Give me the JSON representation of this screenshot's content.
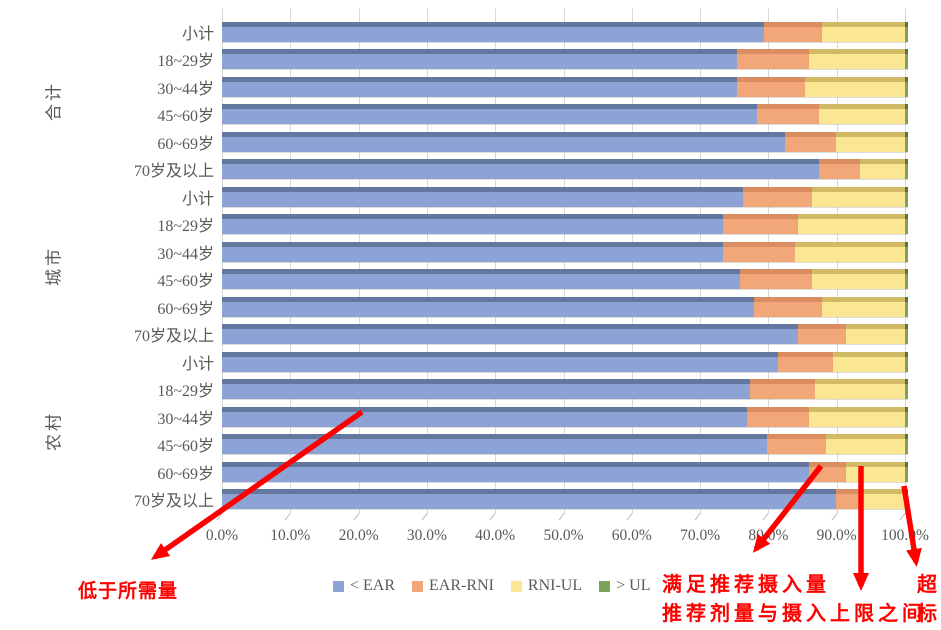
{
  "chart_data": {
    "type": "bar",
    "orientation": "horizontal-stacked",
    "xlim": [
      0,
      100
    ],
    "grid": true,
    "legend_position": "bottom",
    "x_tick_labels": [
      "0.0%",
      "10.0%",
      "20.0%",
      "30.0%",
      "40.0%",
      "50.0%",
      "60.0%",
      "70.0%",
      "80.0%",
      "90.0%",
      "100.0%"
    ],
    "groups": [
      {
        "label": "合计",
        "rows": [
          "小计",
          "18~29岁",
          "30~44岁",
          "45~60岁",
          "60~69岁",
          "70岁及以上"
        ]
      },
      {
        "label": "城市",
        "rows": [
          "小计",
          "18~29岁",
          "30~44岁",
          "45~60岁",
          "60~69岁",
          "70岁及以上"
        ]
      },
      {
        "label": "农村",
        "rows": [
          "小计",
          "18~29岁",
          "30~44岁",
          "45~60岁",
          "60~69岁",
          "70岁及以上"
        ]
      }
    ],
    "series": [
      {
        "name": "< EAR",
        "color": "#8DA3D6",
        "bevel": "#64779F",
        "values": [
          79.0,
          75.0,
          75.0,
          78.0,
          82.0,
          87.0,
          76.0,
          73.0,
          73.0,
          75.5,
          77.5,
          84.0,
          81.0,
          77.0,
          76.5,
          79.5,
          85.5,
          89.5
        ]
      },
      {
        "name": "EAR-RNI",
        "color": "#F2A779",
        "bevel": "#D98D60",
        "values": [
          8.5,
          10.5,
          10.0,
          9.0,
          7.5,
          6.0,
          10.0,
          11.0,
          10.5,
          10.5,
          10.0,
          7.0,
          8.0,
          9.5,
          9.0,
          8.5,
          5.5,
          4.0
        ]
      },
      {
        "name": "RNI-UL",
        "color": "#FBE693",
        "bevel": "#D2B964",
        "values": [
          12.0,
          14.0,
          14.5,
          12.5,
          10.0,
          6.5,
          13.5,
          15.5,
          16.0,
          13.5,
          12.0,
          8.5,
          10.5,
          13.0,
          14.0,
          11.5,
          8.5,
          6.0
        ]
      },
      {
        "name": "> UL",
        "color": "#7AA357",
        "bevel": "#55773D",
        "values": [
          0.5,
          0.5,
          0.5,
          0.5,
          0.5,
          0.5,
          0.5,
          0.5,
          0.5,
          0.5,
          0.5,
          0.5,
          0.5,
          0.5,
          0.5,
          0.5,
          0.5,
          0.5
        ]
      }
    ]
  },
  "annotations": {
    "below_required": "低于所需量",
    "meets_recommended": "满足推荐摄入量",
    "between_rni_ul": "推荐剂量与摄入上限之间",
    "exceed_line1": "超",
    "exceed_line2": "标",
    "color": "#FF0000"
  },
  "style": {
    "gridline_color": "#D8D8D8",
    "text_color": "#595959"
  }
}
